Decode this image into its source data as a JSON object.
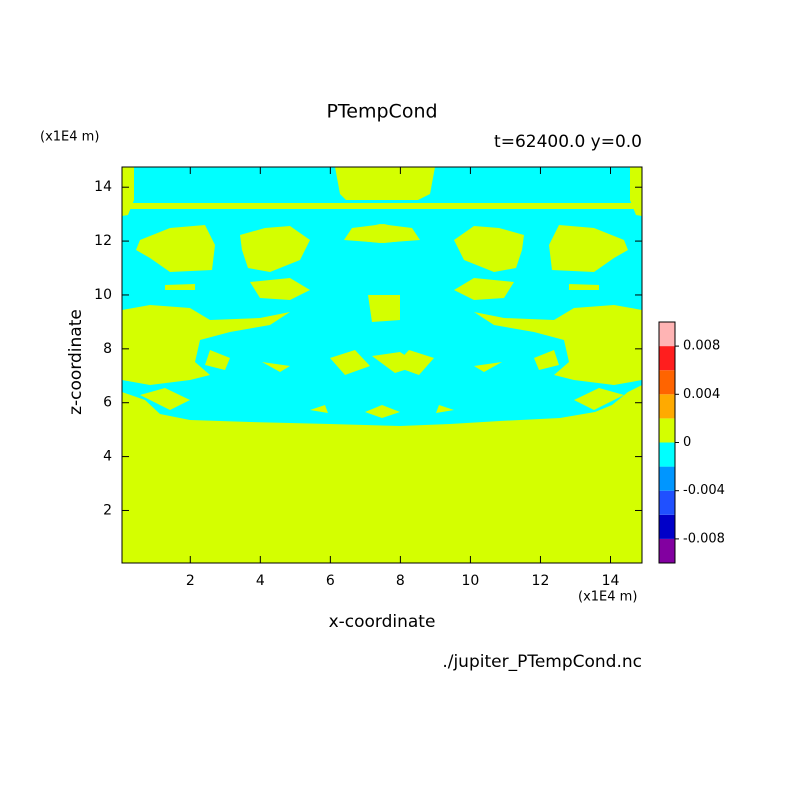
{
  "chart_data": {
    "type": "contour",
    "title": "PTempCond",
    "subtitle": "t=62400.0 y=0.0",
    "x_label": "x-coordinate",
    "y_label": "z-coordinate",
    "x_unit": "(x1E4 m)",
    "y_unit": "(x1E4 m)",
    "source": "./jupiter_PTempCond.nc",
    "xlim": [
      0.05,
      14.9
    ],
    "ylim": [
      0.05,
      14.75
    ],
    "xticks": [
      2,
      4,
      6,
      8,
      10,
      12,
      14
    ],
    "yticks": [
      2,
      4,
      6,
      8,
      10,
      12,
      14
    ],
    "colorbar": {
      "levels": [
        -0.01,
        -0.008,
        -0.006,
        -0.004,
        -0.002,
        0,
        0.002,
        0.004,
        0.006,
        0.008,
        0.01
      ],
      "colors": [
        "#8200a0",
        "#0000c8",
        "#2050ff",
        "#0096ff",
        "#00ffff",
        "#d4ff00",
        "#ffaa00",
        "#ff6400",
        "#ff1e1e",
        "#ffb4b4"
      ],
      "ticks": [
        -0.008,
        -0.004,
        0,
        0.004,
        0.008
      ]
    }
  }
}
